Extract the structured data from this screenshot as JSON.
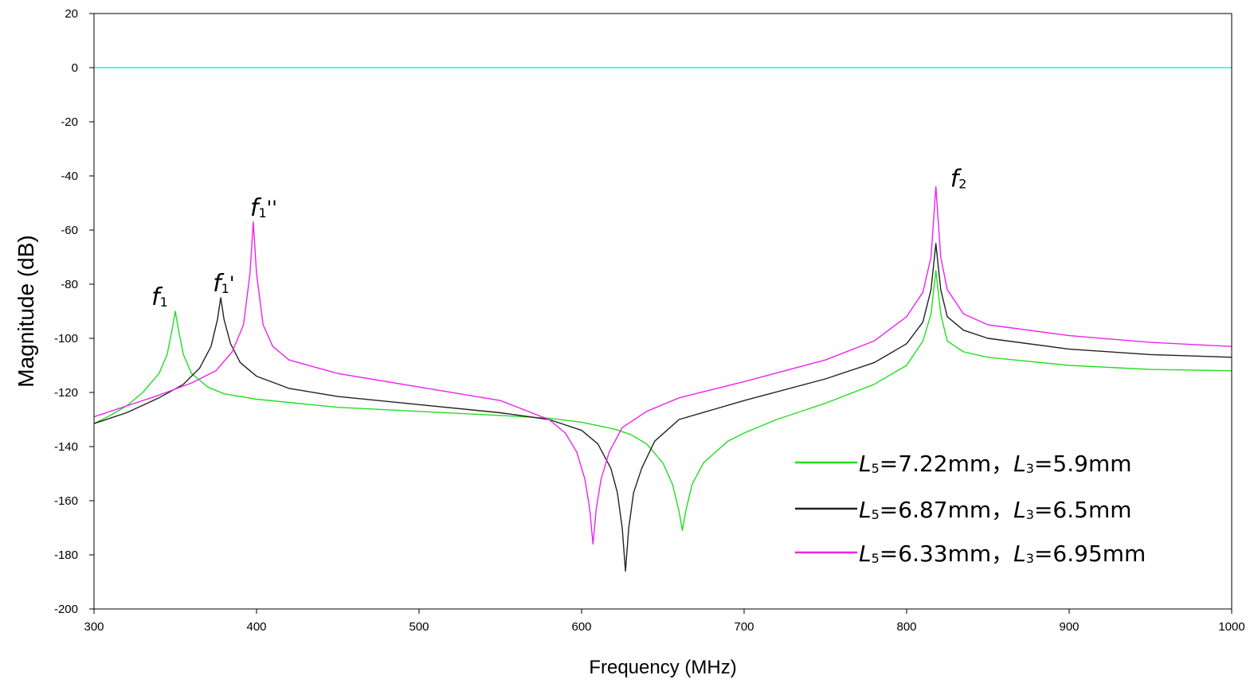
{
  "chart_data": {
    "type": "line",
    "xlabel": "Frequency (MHz)",
    "ylabel": "Magnitude (dB)",
    "xlim": [
      300,
      1000
    ],
    "ylim": [
      -200,
      20
    ],
    "xticks": [
      "300",
      "400",
      "500",
      "600",
      "700",
      "800",
      "900",
      "1000"
    ],
    "yticks": [
      "20",
      "0",
      "-20",
      "-40",
      "-60",
      "-80",
      "-100",
      "-120",
      "-140",
      "-160",
      "-180",
      "-200"
    ],
    "grid": false,
    "legend_position": "bottom-right",
    "reference_line": {
      "y": 0,
      "color": "#00e5e5"
    },
    "series": [
      {
        "name_parts": [
          "L",
          "5",
          "=7.22mm，",
          "L",
          "3",
          "=5.9mm"
        ],
        "color": "#22dd22",
        "points": [
          [
            300,
            -131.5
          ],
          [
            310,
            -128.5
          ],
          [
            320,
            -125
          ],
          [
            330,
            -120
          ],
          [
            340,
            -113
          ],
          [
            345,
            -106
          ],
          [
            348,
            -97
          ],
          [
            350,
            -90
          ],
          [
            352,
            -97
          ],
          [
            355,
            -106
          ],
          [
            360,
            -113
          ],
          [
            370,
            -118
          ],
          [
            380,
            -120.5
          ],
          [
            400,
            -122.5
          ],
          [
            450,
            -125.5
          ],
          [
            500,
            -127
          ],
          [
            550,
            -128.5
          ],
          [
            580,
            -129.5
          ],
          [
            600,
            -131
          ],
          [
            620,
            -133.5
          ],
          [
            630,
            -135.5
          ],
          [
            640,
            -139
          ],
          [
            650,
            -146
          ],
          [
            656,
            -154
          ],
          [
            660,
            -164
          ],
          [
            662,
            -171
          ],
          [
            664,
            -164
          ],
          [
            668,
            -154
          ],
          [
            675,
            -146
          ],
          [
            690,
            -138
          ],
          [
            700,
            -135
          ],
          [
            720,
            -130
          ],
          [
            750,
            -124
          ],
          [
            780,
            -117
          ],
          [
            800,
            -110
          ],
          [
            810,
            -101
          ],
          [
            815,
            -91
          ],
          [
            818,
            -75
          ],
          [
            821,
            -91
          ],
          [
            825,
            -101
          ],
          [
            835,
            -105
          ],
          [
            850,
            -107
          ],
          [
            900,
            -110
          ],
          [
            950,
            -111.5
          ],
          [
            1000,
            -112
          ]
        ]
      },
      {
        "name_parts": [
          "L",
          "5",
          "=6.87mm，",
          "L",
          "3",
          "=6.5mm"
        ],
        "color": "#222222",
        "points": [
          [
            300,
            -131.5
          ],
          [
            320,
            -127.5
          ],
          [
            340,
            -122
          ],
          [
            355,
            -117
          ],
          [
            365,
            -111
          ],
          [
            372,
            -103
          ],
          [
            376,
            -93
          ],
          [
            378,
            -85
          ],
          [
            380,
            -93
          ],
          [
            384,
            -102
          ],
          [
            390,
            -109
          ],
          [
            400,
            -114
          ],
          [
            420,
            -118.5
          ],
          [
            450,
            -121.5
          ],
          [
            500,
            -124.5
          ],
          [
            550,
            -127.5
          ],
          [
            580,
            -130
          ],
          [
            600,
            -134
          ],
          [
            610,
            -139
          ],
          [
            618,
            -148
          ],
          [
            622,
            -157
          ],
          [
            625,
            -170
          ],
          [
            627,
            -186
          ],
          [
            629,
            -170
          ],
          [
            632,
            -157
          ],
          [
            637,
            -148
          ],
          [
            645,
            -138
          ],
          [
            660,
            -130
          ],
          [
            700,
            -123
          ],
          [
            750,
            -115
          ],
          [
            780,
            -109
          ],
          [
            800,
            -102
          ],
          [
            810,
            -94
          ],
          [
            815,
            -82
          ],
          [
            818,
            -65
          ],
          [
            821,
            -82
          ],
          [
            825,
            -92
          ],
          [
            835,
            -97
          ],
          [
            850,
            -100
          ],
          [
            900,
            -104
          ],
          [
            950,
            -106
          ],
          [
            1000,
            -107
          ]
        ]
      },
      {
        "name_parts": [
          "L",
          "5",
          "=6.33mm，",
          "L",
          "3",
          "=6.95mm"
        ],
        "color": "#ee22ee",
        "points": [
          [
            300,
            -129
          ],
          [
            320,
            -125
          ],
          [
            340,
            -121
          ],
          [
            360,
            -116.5
          ],
          [
            375,
            -112
          ],
          [
            385,
            -105
          ],
          [
            392,
            -95
          ],
          [
            396,
            -76
          ],
          [
            398,
            -57
          ],
          [
            400,
            -76
          ],
          [
            404,
            -95
          ],
          [
            410,
            -103
          ],
          [
            420,
            -108
          ],
          [
            450,
            -113
          ],
          [
            500,
            -118
          ],
          [
            550,
            -123
          ],
          [
            580,
            -130
          ],
          [
            590,
            -135
          ],
          [
            597,
            -142
          ],
          [
            602,
            -152
          ],
          [
            605,
            -163
          ],
          [
            607,
            -176
          ],
          [
            609,
            -163
          ],
          [
            612,
            -152
          ],
          [
            617,
            -142
          ],
          [
            625,
            -133
          ],
          [
            640,
            -127
          ],
          [
            660,
            -122
          ],
          [
            700,
            -116
          ],
          [
            750,
            -108
          ],
          [
            780,
            -101
          ],
          [
            800,
            -92
          ],
          [
            810,
            -83
          ],
          [
            815,
            -70
          ],
          [
            818,
            -44
          ],
          [
            821,
            -70
          ],
          [
            825,
            -82
          ],
          [
            835,
            -91
          ],
          [
            850,
            -95
          ],
          [
            900,
            -99
          ],
          [
            950,
            -101.5
          ],
          [
            1000,
            -103
          ]
        ]
      }
    ],
    "annotations": [
      {
        "base": "f",
        "sub": "1",
        "mark": "",
        "x": 350,
        "y": -90
      },
      {
        "base": "f",
        "sub": "1",
        "mark": "'",
        "x": 378,
        "y": -85
      },
      {
        "base": "f",
        "sub": "1",
        "mark": "''",
        "x": 398,
        "y": -57
      },
      {
        "base": "f",
        "sub": "2",
        "mark": "",
        "x": 818,
        "y": -44
      }
    ]
  }
}
